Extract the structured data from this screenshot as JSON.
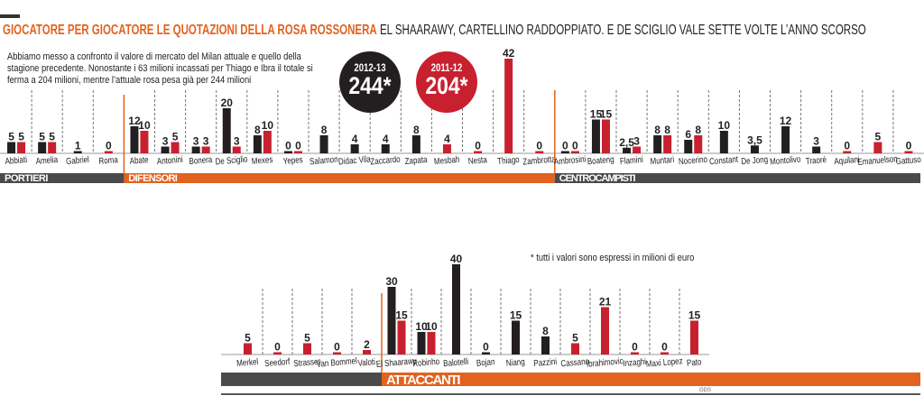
{
  "header": {
    "title_highlight": "GIOCATORE PER GIOCATORE LE QUOTAZIONI DELLA ROSA ROSSONERA",
    "title_rest": "EL SHAARAWY, CARTELLINO RADDOPPIATO. E DE SCIGLIO VALE SETTE VOLTE L’ANNO SCORSO",
    "intro": "Abbiamo messo a confronto il valore di mercato del Milan attuale e quello della stagione precedente. Nonostante i 63 milioni incassati per Thiago e Ibra il totale si ferma a 204 milioni, mentre l’attuale rosa pesa già per 244 milioni"
  },
  "totals": [
    {
      "season": "2012-13",
      "value": "244*",
      "color": "#231f20"
    },
    {
      "season": "2011-12",
      "value": "204*",
      "color": "#c8202f"
    }
  ],
  "footnote": "* tutti i valori sono espressi in milioni di euro",
  "source": "GDS",
  "colors": {
    "season_2012_13": "#231f20",
    "season_2011_12": "#c8202f",
    "accent": "#e2621f",
    "band_gray": "#4a4a4a"
  },
  "chart_data": {
    "type": "bar",
    "unit": "milioni di euro",
    "series": [
      {
        "name": "2012-13",
        "color": "#231f20"
      },
      {
        "name": "2011-12",
        "color": "#c8202f"
      }
    ],
    "rows": [
      {
        "groups": [
          {
            "name": "PORTIERI",
            "color": "#4a4a4a",
            "players": [
              {
                "name": "Abbiati",
                "v2012": 5,
                "v2011": 5
              },
              {
                "name": "Amelia",
                "v2012": 5,
                "v2011": 5
              },
              {
                "name": "Gabriel",
                "v2012": 1,
                "v2011": null
              },
              {
                "name": "Roma",
                "v2012": null,
                "v2011": 0
              }
            ]
          },
          {
            "name": "DIFENSORI",
            "color": "#e2621f",
            "players": [
              {
                "name": "Abate",
                "v2012": 12,
                "v2011": 10
              },
              {
                "name": "Antonini",
                "v2012": 3,
                "v2011": 5
              },
              {
                "name": "Bonera",
                "v2012": 3,
                "v2011": 3
              },
              {
                "name": "De Sciglio",
                "v2012": 20,
                "v2011": 3
              },
              {
                "name": "Mexes",
                "v2012": 8,
                "v2011": 10
              },
              {
                "name": "Yepes",
                "v2012": 0,
                "v2011": 0
              },
              {
                "name": "Salamon",
                "v2012": 8,
                "v2011": null
              },
              {
                "name": "Didac Vila",
                "v2012": 4,
                "v2011": null
              },
              {
                "name": "Zaccardo",
                "v2012": 4,
                "v2011": null
              },
              {
                "name": "Zapata",
                "v2012": 8,
                "v2011": null
              },
              {
                "name": "Mesbah",
                "v2012": null,
                "v2011": 4
              },
              {
                "name": "Nesta",
                "v2012": null,
                "v2011": 0
              },
              {
                "name": "Thiago",
                "v2012": null,
                "v2011": 42
              },
              {
                "name": "Zambrotta",
                "v2012": null,
                "v2011": 0
              }
            ]
          },
          {
            "name": "CENTROCAMPISTI",
            "color": "#4a4a4a",
            "players": [
              {
                "name": "Ambrosini",
                "v2012": 0,
                "v2011": 0
              },
              {
                "name": "Boateng",
                "v2012": 15,
                "v2011": 15
              },
              {
                "name": "Flamini",
                "v2012": 2.5,
                "v2011": 3
              },
              {
                "name": "Muntari",
                "v2012": 8,
                "v2011": 8
              },
              {
                "name": "Nocerino",
                "v2012": 6,
                "v2011": 8
              },
              {
                "name": "Constant",
                "v2012": 10,
                "v2011": null
              },
              {
                "name": "De Jong",
                "v2012": 3.5,
                "v2011": null
              },
              {
                "name": "Montolivo",
                "v2012": 12,
                "v2011": null
              },
              {
                "name": "Traoré",
                "v2012": 3,
                "v2011": null
              },
              {
                "name": "Aquilani",
                "v2012": null,
                "v2011": 0
              },
              {
                "name": "Emanuelson",
                "v2012": null,
                "v2011": 5
              },
              {
                "name": "Gattuso",
                "v2012": null,
                "v2011": 0
              }
            ]
          }
        ]
      },
      {
        "groups": [
          {
            "name": "",
            "color": "#4a4a4a",
            "players": [
              {
                "name": "Merkel",
                "v2012": null,
                "v2011": 5
              },
              {
                "name": "Seedorf",
                "v2012": null,
                "v2011": 0
              },
              {
                "name": "Strasser",
                "v2012": null,
                "v2011": 5
              },
              {
                "name": "Van Bommel",
                "v2012": null,
                "v2011": 0
              },
              {
                "name": "Valoti",
                "v2012": null,
                "v2011": 2
              }
            ]
          },
          {
            "name": "ATTACCANTI",
            "color": "#e2621f",
            "players": [
              {
                "name": "El Shaarawy",
                "v2012": 30,
                "v2011": 15
              },
              {
                "name": "Robinho",
                "v2012": 10,
                "v2011": 10
              },
              {
                "name": "Balotelli",
                "v2012": 40,
                "v2011": null
              },
              {
                "name": "Bojan",
                "v2012": 0,
                "v2011": null
              },
              {
                "name": "Niang",
                "v2012": 15,
                "v2011": null
              },
              {
                "name": "Pazzini",
                "v2012": 8,
                "v2011": null
              },
              {
                "name": "Cassano",
                "v2012": null,
                "v2011": 5
              },
              {
                "name": "Ibrahimovic",
                "v2012": null,
                "v2011": 21
              },
              {
                "name": "Inzaghi",
                "v2012": null,
                "v2011": 0
              },
              {
                "name": "Maxi Lopez",
                "v2012": null,
                "v2011": 0
              },
              {
                "name": "Pato",
                "v2012": null,
                "v2011": 15
              }
            ]
          }
        ]
      }
    ]
  }
}
